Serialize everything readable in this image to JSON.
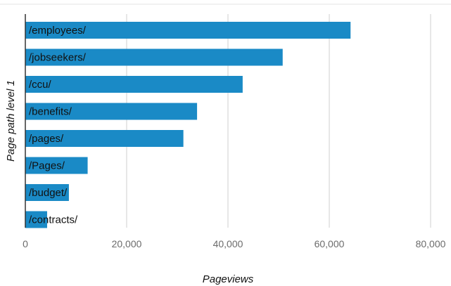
{
  "chart_data": {
    "type": "bar",
    "orientation": "horizontal",
    "categories": [
      "/employees/",
      "/jobseekers/",
      "/ccu/",
      "/benefits/",
      "/pages/",
      "/Pages/",
      "/budget/",
      "/contracts/"
    ],
    "values": [
      64200,
      50800,
      42900,
      33900,
      31200,
      12300,
      8600,
      4300
    ],
    "xlabel": "Pageviews",
    "ylabel": "Page path level 1",
    "xlim": [
      0,
      80000
    ],
    "x_ticks": [
      "0",
      "20,000",
      "40,000",
      "60,000",
      "80,000"
    ],
    "x_tick_values": [
      0,
      20000,
      40000,
      60000,
      80000
    ],
    "grid": true,
    "colors": {
      "bar": "#1a8ac6",
      "grid": "#d7d7d7",
      "axis": "#333333",
      "top_rule": "#e3e3e3"
    }
  }
}
